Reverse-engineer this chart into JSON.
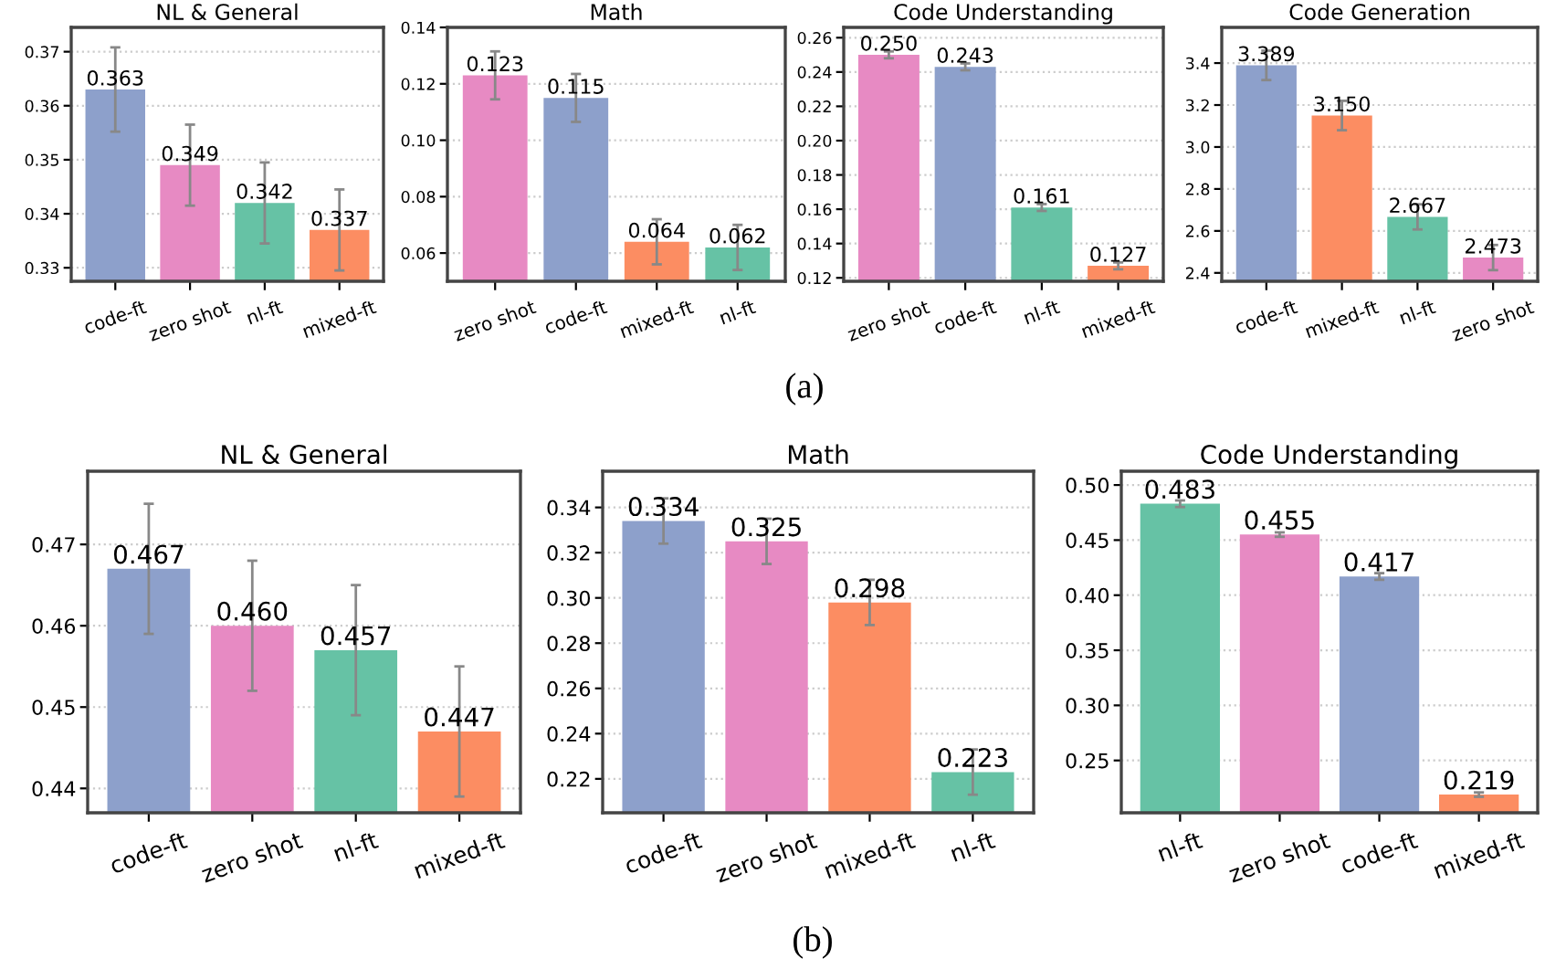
{
  "chart_data": [
    {
      "type": "bar",
      "title": "NL & General",
      "categories": [
        "code-ft",
        "zero shot",
        "nl-ft",
        "mixed-ft"
      ],
      "values": [
        0.363,
        0.349,
        0.342,
        0.337
      ],
      "value_labels": [
        "0.363",
        "0.349",
        "0.342",
        "0.337"
      ],
      "colors": [
        "#8da0cb",
        "#e78ac3",
        "#66c2a5",
        "#fc8d62"
      ],
      "errors": [
        0.0078,
        0.0075,
        0.0075,
        0.0075
      ],
      "ylim": [
        0.3275,
        0.3745
      ],
      "yticks": [
        0.33,
        0.34,
        0.35,
        0.36,
        0.37
      ],
      "grid": "y",
      "annotations": [
        "(a)"
      ]
    },
    {
      "type": "bar",
      "title": "Math",
      "categories": [
        "zero shot",
        "code-ft",
        "mixed-ft",
        "nl-ft"
      ],
      "values": [
        0.123,
        0.115,
        0.064,
        0.062
      ],
      "value_labels": [
        "0.123",
        "0.115",
        "0.064",
        "0.062"
      ],
      "colors": [
        "#e78ac3",
        "#8da0cb",
        "#fc8d62",
        "#66c2a5"
      ],
      "errors": [
        0.0085,
        0.0085,
        0.008,
        0.008
      ],
      "ylim": [
        0.05,
        0.14
      ],
      "yticks": [
        0.06,
        0.08,
        {
          "value": 0.1,
          "label": "0.10"
        },
        0.12,
        0.14
      ],
      "grid": "y"
    },
    {
      "type": "bar",
      "title": "Code Understanding",
      "categories": [
        "zero shot",
        "code-ft",
        "nl-ft",
        "mixed-ft"
      ],
      "values": [
        0.25,
        0.243,
        0.161,
        0.127
      ],
      "value_labels": [
        "0.250",
        "0.243",
        "0.161",
        "0.127"
      ],
      "colors": [
        "#e78ac3",
        "#8da0cb",
        "#66c2a5",
        "#fc8d62"
      ],
      "errors": [
        0.002,
        0.002,
        0.002,
        0.002
      ],
      "ylim": [
        0.118,
        0.266
      ],
      "yticks": [
        0.12,
        0.14,
        0.16,
        0.18,
        {
          "value": 0.2,
          "label": "0.20"
        },
        0.22,
        0.24,
        0.26
      ],
      "grid": "y"
    },
    {
      "type": "bar",
      "title": "Code Generation",
      "categories": [
        "code-ft",
        "mixed-ft",
        "nl-ft",
        "zero shot"
      ],
      "values": [
        3.389,
        3.15,
        2.667,
        2.473
      ],
      "value_labels": [
        "3.389",
        "3.150",
        "2.667",
        "2.473"
      ],
      "colors": [
        "#8da0cb",
        "#fc8d62",
        "#66c2a5",
        "#e78ac3"
      ],
      "errors": [
        0.07,
        0.07,
        0.06,
        0.06
      ],
      "ylim": [
        2.36,
        3.57
      ],
      "yticks": [
        2.4,
        2.6,
        2.8,
        {
          "value": 3,
          "label": "3.0"
        },
        3.2,
        3.4
      ],
      "grid": "y"
    },
    {
      "type": "bar",
      "title": "NL & General",
      "categories": [
        "code-ft",
        "zero shot",
        "nl-ft",
        "mixed-ft"
      ],
      "values": [
        0.467,
        0.46,
        0.457,
        0.447
      ],
      "value_labels": [
        "0.467",
        "0.460",
        "0.457",
        "0.447"
      ],
      "colors": [
        "#8da0cb",
        "#e78ac3",
        "#66c2a5",
        "#fc8d62"
      ],
      "errors": [
        0.008,
        0.008,
        0.008,
        0.008
      ],
      "ylim": [
        0.437,
        0.479
      ],
      "yticks": [
        0.44,
        0.45,
        0.46,
        0.47
      ],
      "grid": "y",
      "annotations": [
        "(b)"
      ]
    },
    {
      "type": "bar",
      "title": "Math",
      "categories": [
        "code-ft",
        "zero shot",
        "mixed-ft",
        "nl-ft"
      ],
      "values": [
        0.334,
        0.325,
        0.298,
        0.223
      ],
      "value_labels": [
        "0.334",
        "0.325",
        "0.298",
        "0.223"
      ],
      "colors": [
        "#8da0cb",
        "#e78ac3",
        "#fc8d62",
        "#66c2a5"
      ],
      "errors": [
        0.01,
        0.01,
        0.01,
        0.01
      ],
      "ylim": [
        0.205,
        0.356
      ],
      "yticks": [
        0.22,
        0.24,
        0.26,
        0.28,
        {
          "value": 0.3,
          "label": "0.30"
        },
        0.32,
        0.34
      ],
      "grid": "y"
    },
    {
      "type": "bar",
      "title": "Code Understanding",
      "categories": [
        "nl-ft",
        "zero shot",
        "code-ft",
        "mixed-ft"
      ],
      "values": [
        0.483,
        0.455,
        0.417,
        0.219
      ],
      "value_labels": [
        "0.483",
        "0.455",
        "0.417",
        "0.219"
      ],
      "colors": [
        "#66c2a5",
        "#e78ac3",
        "#8da0cb",
        "#fc8d62"
      ],
      "errors": [
        0.003,
        0.002,
        0.003,
        0.002
      ],
      "ylim": [
        0.2025,
        0.5125
      ],
      "yticks": [
        0.25,
        {
          "value": 0.3,
          "label": "0.30"
        },
        0.35,
        {
          "value": 0.4,
          "label": "0.40"
        },
        0.45,
        {
          "value": 0.5,
          "label": "0.50"
        }
      ],
      "grid": "y"
    }
  ]
}
